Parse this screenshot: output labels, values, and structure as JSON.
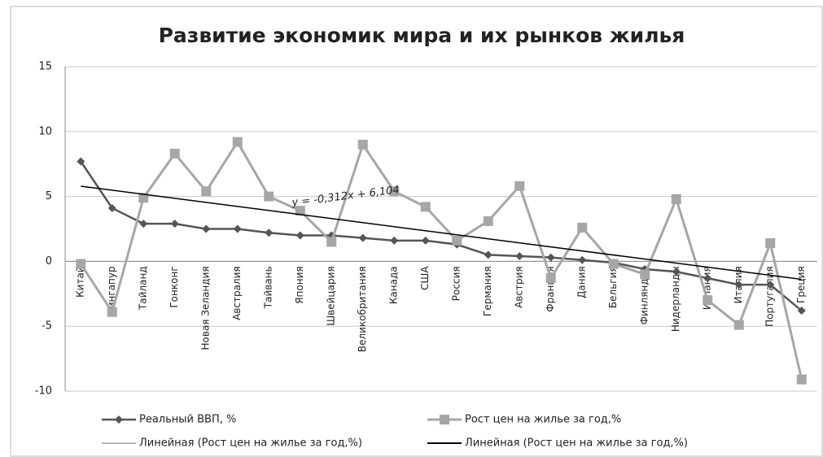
{
  "chart_data": {
    "type": "line",
    "title": "Развитие экономик мира и их рынков жилья",
    "categories": [
      "Китай",
      "Сингапур",
      "Тайланд",
      "Гонконг",
      "Новая Зеландия",
      "Австралия",
      "Тайвань",
      "Япония",
      "Швейцария",
      "Великобритания",
      "Канада",
      "США",
      "Россия",
      "Германия",
      "Австрия",
      "Франция",
      "Дания",
      "Бельгия",
      "Финляндия",
      "Нидерланды",
      "Испания",
      "Италия",
      "Португалия",
      "Греция"
    ],
    "series": [
      {
        "name": "Реальный ВВП, %",
        "color": "#555555",
        "marker": "diamond",
        "values": [
          7.7,
          4.1,
          2.9,
          2.9,
          2.5,
          2.5,
          2.2,
          2.0,
          2.0,
          1.8,
          1.6,
          1.6,
          1.3,
          0.5,
          0.4,
          0.3,
          0.1,
          -0.1,
          -0.6,
          -0.8,
          -1.3,
          -1.8,
          -1.8,
          -3.8
        ]
      },
      {
        "name": "Рост цен на жилье за год,%",
        "color": "#a6a6a6",
        "marker": "square",
        "values": [
          -0.2,
          -3.9,
          4.9,
          8.3,
          5.4,
          9.2,
          5.0,
          3.9,
          1.5,
          9.0,
          5.4,
          4.2,
          1.6,
          3.1,
          5.8,
          -1.3,
          2.6,
          -0.2,
          -1.0,
          4.8,
          -3.0,
          -4.9,
          1.4,
          -9.1
        ]
      }
    ],
    "trendlines": [
      {
        "name": "Линейная (Рост цен на жилье за год,%)",
        "color": "#8c8c8c"
      },
      {
        "name": "Линейная (Рост цен на жилье за год,%)",
        "color": "#000000",
        "slope": -0.312,
        "intercept": 6.104,
        "label": "y = -0,312x + 6,104"
      }
    ],
    "ylim": [
      -10,
      15
    ],
    "yticks": [
      -10,
      -5,
      0,
      5,
      10,
      15
    ],
    "grid": true
  }
}
